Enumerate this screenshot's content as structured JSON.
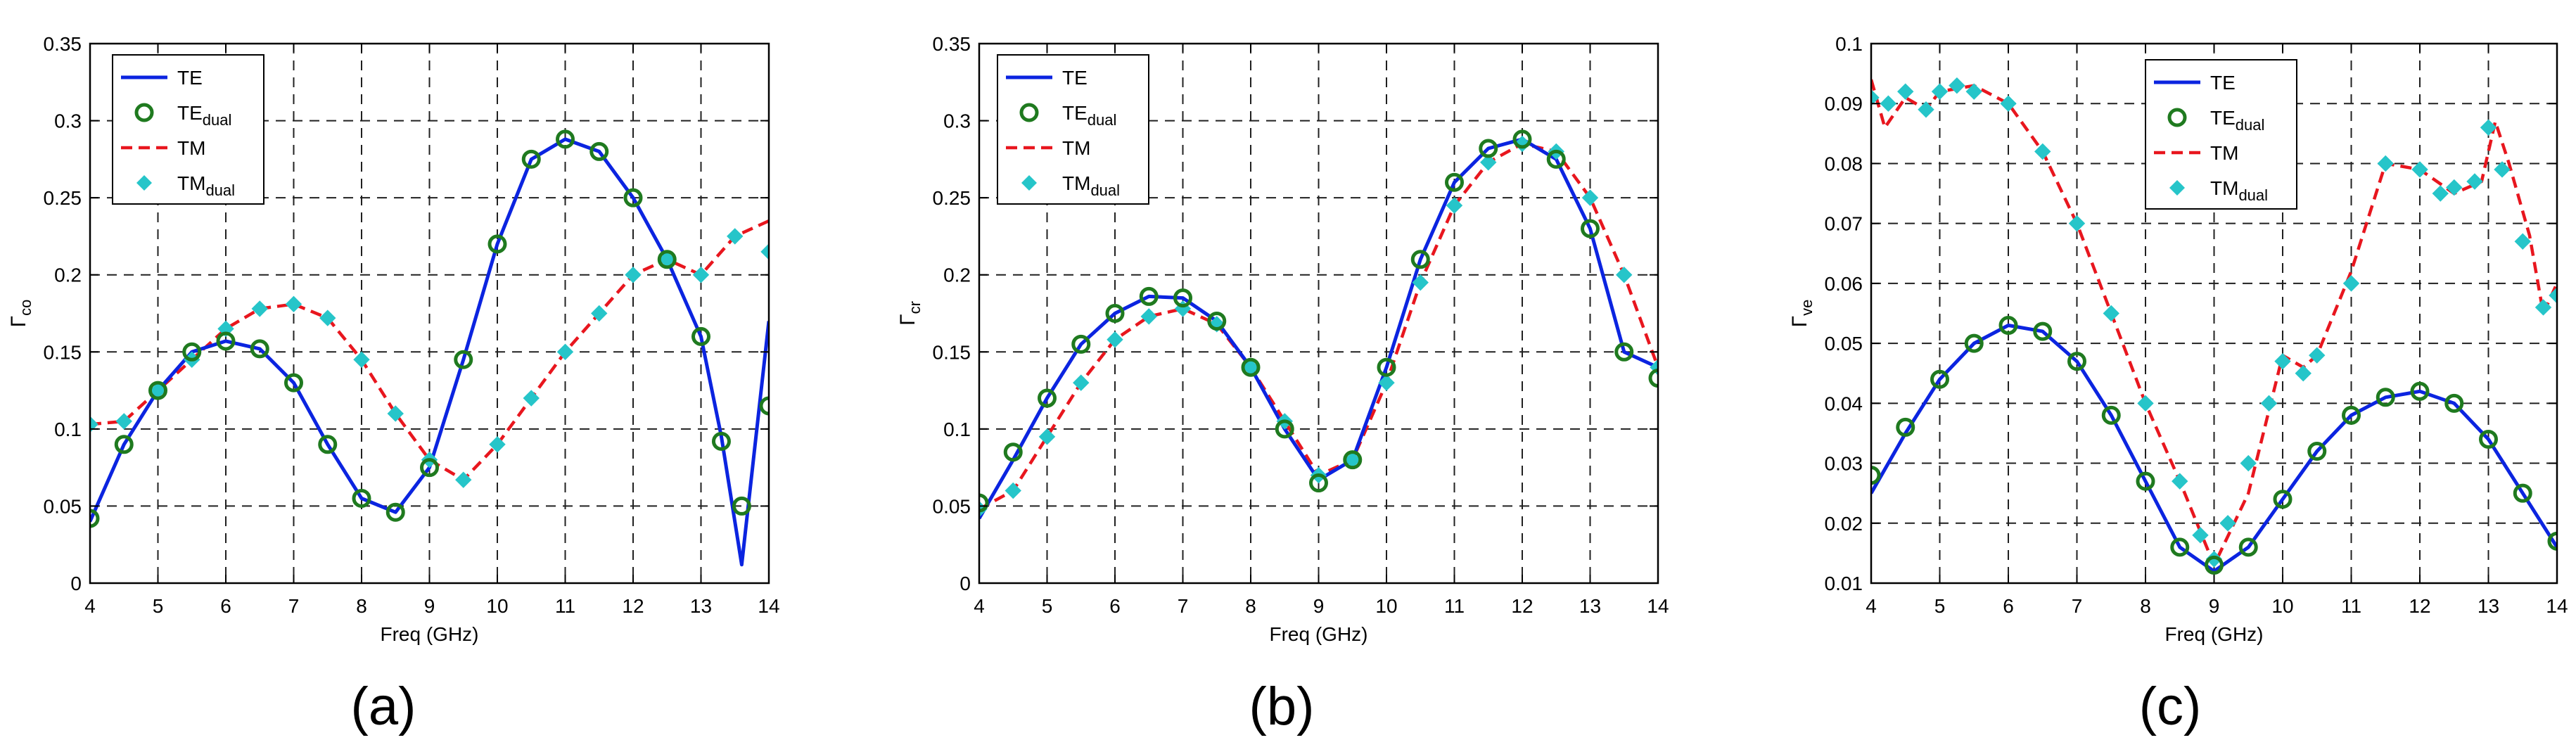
{
  "figure": {
    "captions": [
      "(a)",
      "(b)",
      "(c)"
    ]
  },
  "colors": {
    "te": "#0b24e0",
    "te_dual": "#1f7a1f",
    "tm": "#e8161e",
    "tm_dual": "#26c5c9",
    "grid": "#202020",
    "axis": "#000000"
  },
  "chart_data": [
    {
      "type": "line",
      "title": "",
      "caption": "(a)",
      "xlabel": "Freq (GHz)",
      "ylabel_main": "Γ",
      "ylabel_sub": "co",
      "xlim": [
        4,
        14
      ],
      "ylim": [
        0,
        0.35
      ],
      "xticks": [
        4,
        5,
        6,
        7,
        8,
        9,
        10,
        11,
        12,
        13,
        14
      ],
      "yticks": [
        0,
        0.05,
        0.1,
        0.15,
        0.2,
        0.25,
        0.3,
        0.35
      ],
      "ytick_labels": [
        "0",
        "0.05",
        "0.1",
        "0.15",
        "0.2",
        "0.25",
        "0.3",
        "0.35"
      ],
      "grid": true,
      "legend": {
        "position": "top-left",
        "entries": [
          {
            "label": "TE",
            "sub": ""
          },
          {
            "label": "TE",
            "sub": "dual"
          },
          {
            "label": "TM",
            "sub": ""
          },
          {
            "label": "TM",
            "sub": "dual"
          }
        ]
      },
      "series": [
        {
          "name": "TE",
          "style": "solid-line",
          "x": [
            4,
            4.5,
            5,
            5.5,
            6,
            6.5,
            7,
            7.5,
            8,
            8.5,
            9,
            9.5,
            10,
            10.5,
            11,
            11.5,
            12,
            12.5,
            13,
            13.3,
            13.6,
            14
          ],
          "y": [
            0.04,
            0.09,
            0.125,
            0.15,
            0.157,
            0.152,
            0.13,
            0.09,
            0.055,
            0.046,
            0.075,
            0.145,
            0.22,
            0.275,
            0.288,
            0.28,
            0.25,
            0.21,
            0.16,
            0.095,
            0.012,
            0.17
          ]
        },
        {
          "name": "TE_dual",
          "style": "open-circle",
          "x": [
            4,
            4.5,
            5,
            5.5,
            6,
            6.5,
            7,
            7.5,
            8,
            8.5,
            9,
            9.5,
            10,
            10.5,
            11,
            11.5,
            12,
            12.5,
            13,
            13.3,
            13.6,
            14
          ],
          "y": [
            0.042,
            0.09,
            0.125,
            0.15,
            0.157,
            0.152,
            0.13,
            0.09,
            0.055,
            0.046,
            0.075,
            0.145,
            0.22,
            0.275,
            0.288,
            0.28,
            0.25,
            0.21,
            0.16,
            0.092,
            0.05,
            0.115
          ]
        },
        {
          "name": "TM",
          "style": "dashed-line",
          "x": [
            4,
            4.5,
            5,
            5.5,
            6,
            6.5,
            7,
            7.5,
            8,
            8.5,
            9,
            9.5,
            10,
            10.5,
            11,
            11.5,
            12,
            12.5,
            13,
            13.5,
            14
          ],
          "y": [
            0.103,
            0.105,
            0.125,
            0.145,
            0.165,
            0.178,
            0.181,
            0.172,
            0.145,
            0.11,
            0.08,
            0.067,
            0.09,
            0.12,
            0.15,
            0.175,
            0.2,
            0.21,
            0.2,
            0.225,
            0.235
          ]
        },
        {
          "name": "TM_dual",
          "style": "diamond",
          "x": [
            4,
            4.5,
            5,
            5.5,
            6,
            6.5,
            7,
            7.5,
            8,
            8.5,
            9,
            9.5,
            10,
            10.5,
            11,
            11.5,
            12,
            12.5,
            13,
            13.5,
            14
          ],
          "y": [
            0.103,
            0.105,
            0.125,
            0.145,
            0.165,
            0.178,
            0.181,
            0.172,
            0.145,
            0.11,
            0.08,
            0.067,
            0.09,
            0.12,
            0.15,
            0.175,
            0.2,
            0.21,
            0.2,
            0.225,
            0.215
          ]
        }
      ]
    },
    {
      "type": "line",
      "title": "",
      "caption": "(b)",
      "xlabel": "Freq (GHz)",
      "ylabel_main": "Γ",
      "ylabel_sub": "cr",
      "xlim": [
        4,
        14
      ],
      "ylim": [
        0,
        0.35
      ],
      "xticks": [
        4,
        5,
        6,
        7,
        8,
        9,
        10,
        11,
        12,
        13,
        14
      ],
      "yticks": [
        0,
        0.05,
        0.1,
        0.15,
        0.2,
        0.25,
        0.3,
        0.35
      ],
      "ytick_labels": [
        "0",
        "0.05",
        "0.1",
        "0.15",
        "0.2",
        "0.25",
        "0.3",
        "0.35"
      ],
      "grid": true,
      "legend": {
        "position": "top-left",
        "entries": [
          {
            "label": "TE",
            "sub": ""
          },
          {
            "label": "TE",
            "sub": "dual"
          },
          {
            "label": "TM",
            "sub": ""
          },
          {
            "label": "TM",
            "sub": "dual"
          }
        ]
      },
      "series": [
        {
          "name": "TE",
          "style": "solid-line",
          "x": [
            4,
            4.5,
            5,
            5.5,
            6,
            6.5,
            7,
            7.5,
            8,
            8.5,
            9,
            9.5,
            10,
            10.5,
            11,
            11.5,
            12,
            12.5,
            13,
            13.5,
            14
          ],
          "y": [
            0.042,
            0.08,
            0.12,
            0.155,
            0.175,
            0.186,
            0.185,
            0.17,
            0.14,
            0.1,
            0.067,
            0.08,
            0.14,
            0.21,
            0.26,
            0.282,
            0.288,
            0.275,
            0.23,
            0.15,
            0.14
          ]
        },
        {
          "name": "TE_dual",
          "style": "open-circle",
          "x": [
            4,
            4.5,
            5,
            5.5,
            6,
            6.5,
            7,
            7.5,
            8,
            8.5,
            9,
            9.5,
            10,
            10.5,
            11,
            11.5,
            12,
            12.5,
            13,
            13.5,
            14
          ],
          "y": [
            0.052,
            0.085,
            0.12,
            0.155,
            0.175,
            0.186,
            0.185,
            0.17,
            0.14,
            0.1,
            0.065,
            0.08,
            0.14,
            0.21,
            0.26,
            0.282,
            0.288,
            0.275,
            0.23,
            0.15,
            0.133
          ]
        },
        {
          "name": "TM",
          "style": "dashed-line",
          "x": [
            4,
            4.5,
            5,
            5.5,
            6,
            6.5,
            7,
            7.5,
            8,
            8.5,
            9,
            9.5,
            10,
            10.5,
            11,
            11.5,
            12,
            12.5,
            13,
            13.5,
            14
          ],
          "y": [
            0.048,
            0.06,
            0.095,
            0.13,
            0.158,
            0.173,
            0.178,
            0.168,
            0.14,
            0.105,
            0.07,
            0.08,
            0.13,
            0.195,
            0.245,
            0.273,
            0.285,
            0.28,
            0.25,
            0.2,
            0.14
          ]
        },
        {
          "name": "TM_dual",
          "style": "diamond",
          "x": [
            4,
            4.5,
            5,
            5.5,
            6,
            6.5,
            7,
            7.5,
            8,
            8.5,
            9,
            9.5,
            10,
            10.5,
            11,
            11.5,
            12,
            12.5,
            13,
            13.5,
            14
          ],
          "y": [
            0.048,
            0.06,
            0.095,
            0.13,
            0.158,
            0.173,
            0.178,
            0.168,
            0.14,
            0.105,
            0.07,
            0.08,
            0.13,
            0.195,
            0.245,
            0.273,
            0.285,
            0.28,
            0.25,
            0.2,
            0.14
          ]
        }
      ]
    },
    {
      "type": "line",
      "title": "",
      "caption": "(c)",
      "xlabel": "Freq (GHz)",
      "ylabel_main": "Γ",
      "ylabel_sub": "ve",
      "xlim": [
        4,
        14
      ],
      "ylim": [
        0.01,
        0.1
      ],
      "xticks": [
        4,
        5,
        6,
        7,
        8,
        9,
        10,
        11,
        12,
        13,
        14
      ],
      "yticks": [
        0.01,
        0.02,
        0.03,
        0.04,
        0.05,
        0.06,
        0.07,
        0.08,
        0.09,
        0.1
      ],
      "ytick_labels": [
        "0.01",
        "0.02",
        "0.03",
        "0.04",
        "0.05",
        "0.06",
        "0.07",
        "0.08",
        "0.09",
        "0.1"
      ],
      "grid": true,
      "legend": {
        "position": "top-center",
        "entries": [
          {
            "label": "TE",
            "sub": ""
          },
          {
            "label": "TE",
            "sub": "dual"
          },
          {
            "label": "TM",
            "sub": ""
          },
          {
            "label": "TM",
            "sub": "dual"
          }
        ]
      },
      "series": [
        {
          "name": "TE",
          "style": "solid-line",
          "x": [
            4,
            4.5,
            5,
            5.5,
            6,
            6.5,
            7,
            7.5,
            8,
            8.5,
            9,
            9.5,
            10,
            10.5,
            11,
            11.5,
            12,
            12.5,
            13,
            13.5,
            14
          ],
          "y": [
            0.025,
            0.035,
            0.044,
            0.05,
            0.053,
            0.052,
            0.047,
            0.038,
            0.027,
            0.016,
            0.012,
            0.016,
            0.024,
            0.032,
            0.038,
            0.041,
            0.042,
            0.04,
            0.034,
            0.025,
            0.016
          ]
        },
        {
          "name": "TE_dual",
          "style": "open-circle",
          "x": [
            4,
            4.5,
            5,
            5.5,
            6,
            6.5,
            7,
            7.5,
            8,
            8.5,
            9,
            9.5,
            10,
            10.5,
            11,
            11.5,
            12,
            12.5,
            13,
            13.5,
            14
          ],
          "y": [
            0.028,
            0.036,
            0.044,
            0.05,
            0.053,
            0.052,
            0.047,
            0.038,
            0.027,
            0.016,
            0.013,
            0.016,
            0.024,
            0.032,
            0.038,
            0.041,
            0.042,
            0.04,
            0.034,
            0.025,
            0.017
          ]
        },
        {
          "name": "TM",
          "style": "dashed-line",
          "x": [
            4,
            4.2,
            4.5,
            4.8,
            5,
            5.5,
            6,
            6.5,
            7,
            7.5,
            8,
            8.5,
            9,
            9.5,
            10,
            10.3,
            10.5,
            11,
            11.5,
            12,
            12.5,
            12.9,
            13.1,
            13.3,
            13.6,
            13.8,
            14
          ],
          "y": [
            0.094,
            0.086,
            0.091,
            0.089,
            0.092,
            0.093,
            0.09,
            0.082,
            0.07,
            0.055,
            0.04,
            0.027,
            0.013,
            0.025,
            0.048,
            0.046,
            0.048,
            0.062,
            0.08,
            0.079,
            0.075,
            0.077,
            0.087,
            0.08,
            0.068,
            0.055,
            0.06
          ]
        },
        {
          "name": "TM_dual",
          "style": "diamond",
          "x": [
            4,
            4.25,
            4.5,
            4.8,
            5,
            5.25,
            5.5,
            6,
            6.5,
            7,
            7.5,
            8,
            8.5,
            8.8,
            9,
            9.2,
            9.5,
            9.8,
            10,
            10.3,
            10.5,
            11,
            11.5,
            12,
            12.3,
            12.5,
            12.8,
            13,
            13.2,
            13.5,
            13.8,
            14
          ],
          "y": [
            0.091,
            0.09,
            0.092,
            0.089,
            0.092,
            0.093,
            0.092,
            0.09,
            0.082,
            0.07,
            0.055,
            0.04,
            0.027,
            0.018,
            0.014,
            0.02,
            0.03,
            0.04,
            0.047,
            0.045,
            0.048,
            0.06,
            0.08,
            0.079,
            0.075,
            0.076,
            0.077,
            0.086,
            0.079,
            0.067,
            0.056,
            0.058
          ]
        }
      ]
    }
  ]
}
